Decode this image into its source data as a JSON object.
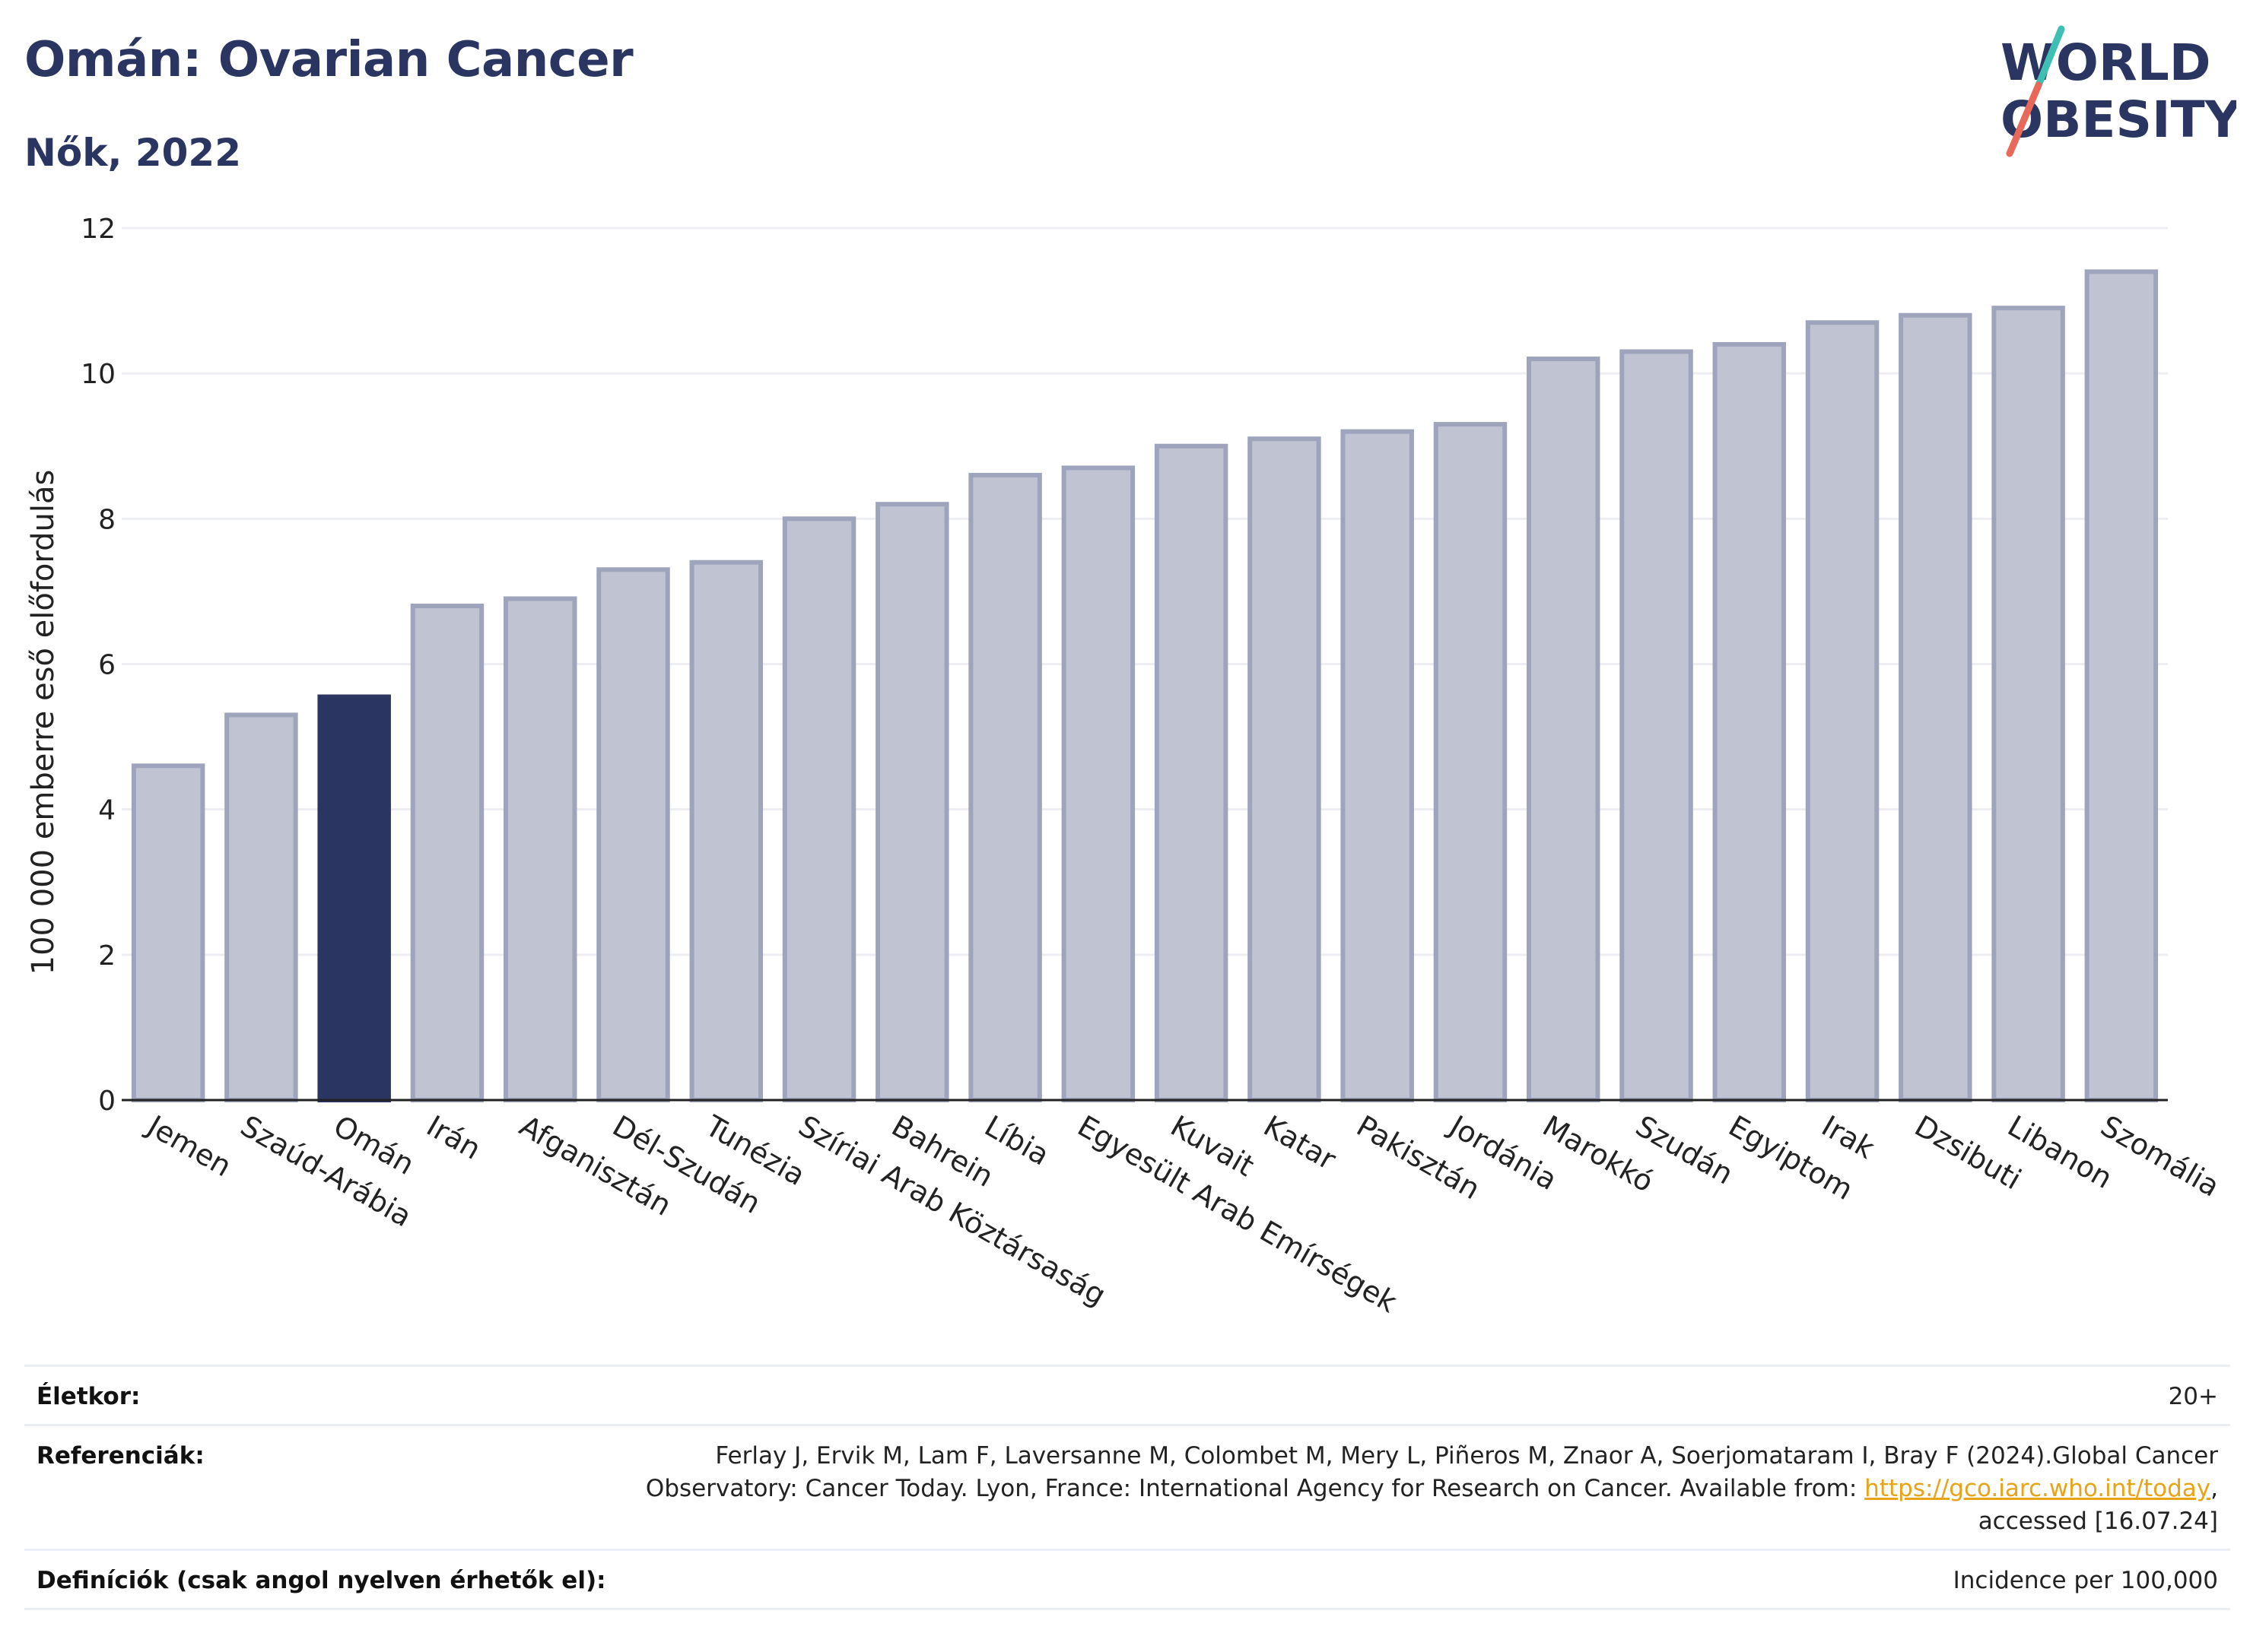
{
  "header": {
    "title": "Omán: Ovarian Cancer",
    "subtitle": "Nők, 2022",
    "logo_line1": "WORLD",
    "logo_line2": "OBESITY"
  },
  "chart_data": {
    "type": "bar",
    "title": "Omán: Ovarian Cancer",
    "subtitle": "Nők, 2022",
    "xlabel": "",
    "ylabel": "100 000 emberre eső előfordulás",
    "ylim": [
      0,
      12
    ],
    "yticks": [
      0,
      2,
      4,
      6,
      8,
      10,
      12
    ],
    "grid": true,
    "highlight": "Omán",
    "colors": {
      "bar": "#c0c3d1",
      "bar_edge": "#9fa4bd",
      "highlight": "#2b3561"
    },
    "categories": [
      "Jemen",
      "Szaúd-Arábia",
      "Omán",
      "Irán",
      "Afganisztán",
      "Dél-Szudán",
      "Tunézia",
      "Szíriai Arab Köztársaság",
      "Bahrein",
      "Líbia",
      "Egyesült Arab Emírségek",
      "Kuvait",
      "Katar",
      "Pakisztán",
      "Jordánia",
      "Marokkó",
      "Szudán",
      "Egyiptom",
      "Irak",
      "Dzsibuti",
      "Libanon",
      "Szomália"
    ],
    "values": [
      4.6,
      5.3,
      5.55,
      6.8,
      6.9,
      7.3,
      7.4,
      8.0,
      8.2,
      8.6,
      8.7,
      9.0,
      9.1,
      9.2,
      9.3,
      10.2,
      10.3,
      10.4,
      10.7,
      10.8,
      10.9,
      11.4
    ]
  },
  "footer": {
    "age_label": "Életkor:",
    "age_value": "20+",
    "refs_label": "Referenciák:",
    "refs_text": "Ferlay J, Ervik M, Lam F, Laversanne M, Colombet M, Mery L, Piñeros M, Znaor A, Soerjomataram I, Bray F (2024).Global Cancer Observatory: Cancer Today. Lyon, France: International Agency for Research on Cancer. Available from: ",
    "refs_link": "https://gco.iarc.who.int/today",
    "refs_tail": ", accessed [16.07.24]",
    "defs_label": "Definíciók (csak angol nyelven érhetők el):",
    "defs_value": "Incidence per 100,000"
  }
}
